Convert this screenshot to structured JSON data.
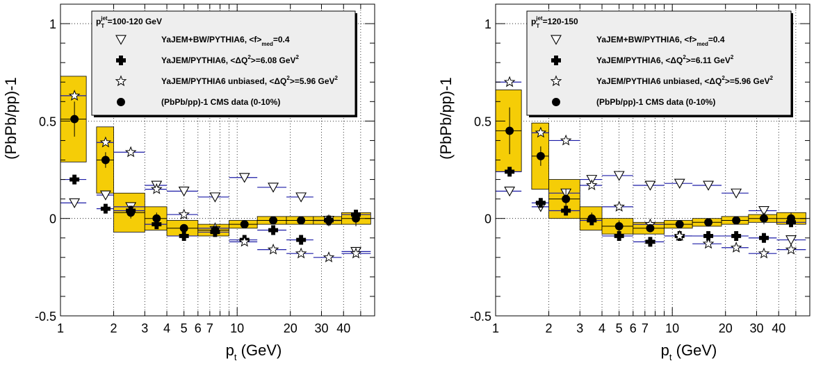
{
  "colors": {
    "band_fill": "#f5cd07",
    "band_stroke": "#000000",
    "blue_line": "#1a1aa6",
    "legend_bg": "#eeeeee",
    "grid": "#000000"
  },
  "chart_data": [
    {
      "type": "scatter",
      "panel": "left",
      "xscale": "log",
      "xlim": [
        1,
        60
      ],
      "ylim": [
        -0.5,
        1.1
      ],
      "xlabel": "p_t (GeV)",
      "ylabel": "(PbPb/pp)-1",
      "x_tick_labels": [
        "1",
        "2",
        "3",
        "4",
        "5",
        "6",
        "7",
        "10",
        "20",
        "30",
        "40"
      ],
      "x_tick_values": [
        1,
        2,
        3,
        4,
        5,
        6,
        7,
        10,
        20,
        30,
        40
      ],
      "y_tick_labels": [
        "-0.5",
        "0",
        "0.5",
        "1"
      ],
      "y_tick_values": [
        -0.5,
        0,
        0.5,
        1
      ],
      "grid": true,
      "legend_title": "p_T^jet=100-120 GeV",
      "legend_title_main": "p",
      "legend_title_sup": "jet",
      "legend_title_sub": "T",
      "legend_title_rest": "=100-120 GeV",
      "legend": [
        {
          "marker": "open-triangle-down",
          "text_main": "YaJEM+BW/PYTHIA6, <f>",
          "text_sub": "med",
          "text_rest": "=0.4"
        },
        {
          "marker": "cross",
          "text_main": "YaJEM/PYTHIA6, <ΔQ",
          "text_sup": "2",
          "text_rest": ">=6.08 GeV",
          "text_sup2": "2"
        },
        {
          "marker": "open-star",
          "text_main": "YaJEM/PYTHIA6 unbiased, <ΔQ",
          "text_sup": "2",
          "text_rest": ">=5.96 GeV",
          "text_sup2": "2"
        },
        {
          "marker": "filled-circle",
          "text_main": "(PbPb/pp)-1 CMS data (0-10%)"
        }
      ],
      "series": [
        {
          "name": "(PbPb/pp)-1 CMS data (0-10%)",
          "marker": "filled-circle",
          "points": [
            {
              "x": 1.2,
              "y": 0.51,
              "err": 0.09,
              "x_lo": 1.0,
              "x_hi": 1.4,
              "sys": 0.22
            },
            {
              "x": 1.8,
              "y": 0.3,
              "err": 0.04,
              "x_lo": 1.6,
              "x_hi": 2.0,
              "sys": 0.17
            },
            {
              "x": 2.5,
              "y": 0.03,
              "err": 0.03,
              "x_lo": 2.0,
              "x_hi": 3.0,
              "sys": 0.1
            },
            {
              "x": 3.5,
              "y": 0.0,
              "err": 0.03,
              "x_lo": 3.0,
              "x_hi": 4.0,
              "sys": 0.06
            },
            {
              "x": 5.0,
              "y": -0.05,
              "err": 0.02,
              "x_lo": 4.0,
              "x_hi": 6.0,
              "sys": 0.04
            },
            {
              "x": 7.5,
              "y": -0.06,
              "err": 0.02,
              "x_lo": 6.0,
              "x_hi": 9.0,
              "sys": 0.03
            },
            {
              "x": 11.0,
              "y": -0.03,
              "err": 0.02,
              "x_lo": 9.0,
              "x_hi": 13.0,
              "sys": 0.02
            },
            {
              "x": 16.0,
              "y": -0.01,
              "err": 0.02,
              "x_lo": 13.0,
              "x_hi": 19.0,
              "sys": 0.02
            },
            {
              "x": 23.0,
              "y": -0.01,
              "err": 0.02,
              "x_lo": 19.0,
              "x_hi": 27.0,
              "sys": 0.02
            },
            {
              "x": 33.0,
              "y": -0.01,
              "err": 0.03,
              "x_lo": 27.0,
              "x_hi": 39.0,
              "sys": 0.02
            },
            {
              "x": 47.0,
              "y": 0.0,
              "err": 0.04,
              "x_lo": 39.0,
              "x_hi": 57.0,
              "sys": 0.03
            }
          ]
        },
        {
          "name": "YaJEM+BW/PYTHIA6, <f>med=0.4",
          "marker": "open-triangle-down",
          "points": [
            {
              "x": 1.2,
              "y": 0.08
            },
            {
              "x": 1.8,
              "y": 0.12
            },
            {
              "x": 2.5,
              "y": 0.06
            },
            {
              "x": 3.5,
              "y": 0.17
            },
            {
              "x": 5.0,
              "y": 0.14
            },
            {
              "x": 7.5,
              "y": 0.11
            },
            {
              "x": 11.0,
              "y": 0.21
            },
            {
              "x": 16.0,
              "y": 0.16
            },
            {
              "x": 23.0,
              "y": 0.11
            },
            {
              "x": 33.0,
              "y": -0.01
            },
            {
              "x": 47.0,
              "y": -0.17
            }
          ]
        },
        {
          "name": "YaJEM/PYTHIA6, <ΔQ2>=6.08 GeV2",
          "marker": "cross",
          "points": [
            {
              "x": 1.2,
              "y": 0.2
            },
            {
              "x": 1.8,
              "y": 0.05
            },
            {
              "x": 2.5,
              "y": 0.04
            },
            {
              "x": 3.5,
              "y": -0.03
            },
            {
              "x": 5.0,
              "y": -0.09
            },
            {
              "x": 7.5,
              "y": -0.07
            },
            {
              "x": 11.0,
              "y": -0.11
            },
            {
              "x": 16.0,
              "y": -0.06
            },
            {
              "x": 23.0,
              "y": -0.11
            },
            {
              "x": 33.0,
              "y": -0.01
            },
            {
              "x": 47.0,
              "y": 0.02
            }
          ]
        },
        {
          "name": "YaJEM/PYTHIA6 unbiased, <ΔQ2>=5.96 GeV2",
          "marker": "open-star",
          "points": [
            {
              "x": 1.2,
              "y": 0.63
            },
            {
              "x": 1.8,
              "y": 0.39
            },
            {
              "x": 2.5,
              "y": 0.34
            },
            {
              "x": 3.5,
              "y": 0.15
            },
            {
              "x": 5.0,
              "y": 0.02
            },
            {
              "x": 7.5,
              "y": -0.05
            },
            {
              "x": 11.0,
              "y": -0.12
            },
            {
              "x": 16.0,
              "y": -0.16
            },
            {
              "x": 23.0,
              "y": -0.18
            },
            {
              "x": 33.0,
              "y": -0.2
            },
            {
              "x": 47.0,
              "y": -0.18
            }
          ]
        }
      ]
    },
    {
      "type": "scatter",
      "panel": "right",
      "xscale": "log",
      "xlim": [
        1,
        60
      ],
      "ylim": [
        -0.5,
        1.1
      ],
      "xlabel": "p_t (GeV)",
      "ylabel": "(PbPb/pp)-1",
      "x_tick_labels": [
        "1",
        "2",
        "3",
        "4",
        "5",
        "6",
        "7",
        "10",
        "20",
        "30",
        "40"
      ],
      "x_tick_values": [
        1,
        2,
        3,
        4,
        5,
        6,
        7,
        10,
        20,
        30,
        40
      ],
      "y_tick_labels": [
        "-0.5",
        "0",
        "0.5",
        "1"
      ],
      "y_tick_values": [
        -0.5,
        0,
        0.5,
        1
      ],
      "grid": true,
      "legend_title": "p_T^jet=120-150",
      "legend_title_main": "p",
      "legend_title_sup": "jet",
      "legend_title_sub": "T",
      "legend_title_rest": "=120-150",
      "legend": [
        {
          "marker": "open-triangle-down",
          "text_main": "YaJEM+BW/PYTHIA6, <f>",
          "text_sub": "med",
          "text_rest": "=0.4"
        },
        {
          "marker": "cross",
          "text_main": "YaJEM/PYTHIA6, <ΔQ",
          "text_sup": "2",
          "text_rest": ">=6.11 GeV",
          "text_sup2": "2"
        },
        {
          "marker": "open-star",
          "text_main": "YaJEM/PYTHIA6 unbiased, <ΔQ",
          "text_sup": "2",
          "text_rest": ">=5.96 GeV",
          "text_sup2": "2"
        },
        {
          "marker": "filled-circle",
          "text_main": "(PbPb/pp)-1 CMS data (0-10%)"
        }
      ],
      "series": [
        {
          "name": "(PbPb/pp)-1 CMS data (0-10%)",
          "marker": "filled-circle",
          "points": [
            {
              "x": 1.2,
              "y": 0.45,
              "err": 0.12,
              "x_lo": 1.0,
              "x_hi": 1.4,
              "sys": 0.21
            },
            {
              "x": 1.8,
              "y": 0.32,
              "err": 0.05,
              "x_lo": 1.6,
              "x_hi": 2.0,
              "sys": 0.17
            },
            {
              "x": 2.5,
              "y": 0.1,
              "err": 0.05,
              "x_lo": 2.0,
              "x_hi": 3.0,
              "sys": 0.1
            },
            {
              "x": 3.5,
              "y": 0.0,
              "err": 0.03,
              "x_lo": 3.0,
              "x_hi": 4.0,
              "sys": 0.06
            },
            {
              "x": 5.0,
              "y": -0.04,
              "err": 0.03,
              "x_lo": 4.0,
              "x_hi": 6.0,
              "sys": 0.04
            },
            {
              "x": 7.5,
              "y": -0.05,
              "err": 0.02,
              "x_lo": 6.0,
              "x_hi": 9.0,
              "sys": 0.03
            },
            {
              "x": 11.0,
              "y": -0.03,
              "err": 0.02,
              "x_lo": 9.0,
              "x_hi": 13.0,
              "sys": 0.02
            },
            {
              "x": 16.0,
              "y": -0.02,
              "err": 0.02,
              "x_lo": 13.0,
              "x_hi": 19.0,
              "sys": 0.02
            },
            {
              "x": 23.0,
              "y": -0.01,
              "err": 0.02,
              "x_lo": 19.0,
              "x_hi": 27.0,
              "sys": 0.02
            },
            {
              "x": 33.0,
              "y": 0.0,
              "err": 0.03,
              "x_lo": 27.0,
              "x_hi": 39.0,
              "sys": 0.02
            },
            {
              "x": 47.0,
              "y": 0.0,
              "err": 0.03,
              "x_lo": 39.0,
              "x_hi": 57.0,
              "sys": 0.03
            }
          ]
        },
        {
          "name": "YaJEM+BW/PYTHIA6, <f>med=0.4",
          "marker": "open-triangle-down",
          "points": [
            {
              "x": 1.2,
              "y": 0.14
            },
            {
              "x": 1.8,
              "y": 0.06
            },
            {
              "x": 2.5,
              "y": 0.13
            },
            {
              "x": 3.5,
              "y": 0.2
            },
            {
              "x": 5.0,
              "y": 0.22
            },
            {
              "x": 7.5,
              "y": 0.17
            },
            {
              "x": 11.0,
              "y": 0.18
            },
            {
              "x": 16.0,
              "y": 0.17
            },
            {
              "x": 23.0,
              "y": 0.13
            },
            {
              "x": 33.0,
              "y": 0.04
            },
            {
              "x": 47.0,
              "y": -0.11
            }
          ]
        },
        {
          "name": "YaJEM/PYTHIA6, <ΔQ2>=6.11 GeV2",
          "marker": "cross",
          "points": [
            {
              "x": 1.2,
              "y": 0.24
            },
            {
              "x": 1.8,
              "y": 0.08
            },
            {
              "x": 2.5,
              "y": 0.04
            },
            {
              "x": 3.5,
              "y": -0.01
            },
            {
              "x": 5.0,
              "y": -0.09
            },
            {
              "x": 7.5,
              "y": -0.12
            },
            {
              "x": 11.0,
              "y": -0.09
            },
            {
              "x": 16.0,
              "y": -0.09
            },
            {
              "x": 23.0,
              "y": -0.09
            },
            {
              "x": 33.0,
              "y": -0.1
            },
            {
              "x": 47.0,
              "y": -0.02
            }
          ]
        },
        {
          "name": "YaJEM/PYTHIA6 unbiased, <ΔQ2>=5.96 GeV2",
          "marker": "open-star",
          "points": [
            {
              "x": 1.2,
              "y": 0.7
            },
            {
              "x": 1.8,
              "y": 0.44
            },
            {
              "x": 2.5,
              "y": 0.4
            },
            {
              "x": 3.5,
              "y": 0.17
            },
            {
              "x": 5.0,
              "y": 0.06
            },
            {
              "x": 7.5,
              "y": -0.03
            },
            {
              "x": 11.0,
              "y": -0.09
            },
            {
              "x": 16.0,
              "y": -0.13
            },
            {
              "x": 23.0,
              "y": -0.15
            },
            {
              "x": 33.0,
              "y": -0.18
            },
            {
              "x": 47.0,
              "y": -0.16
            }
          ]
        }
      ]
    }
  ]
}
